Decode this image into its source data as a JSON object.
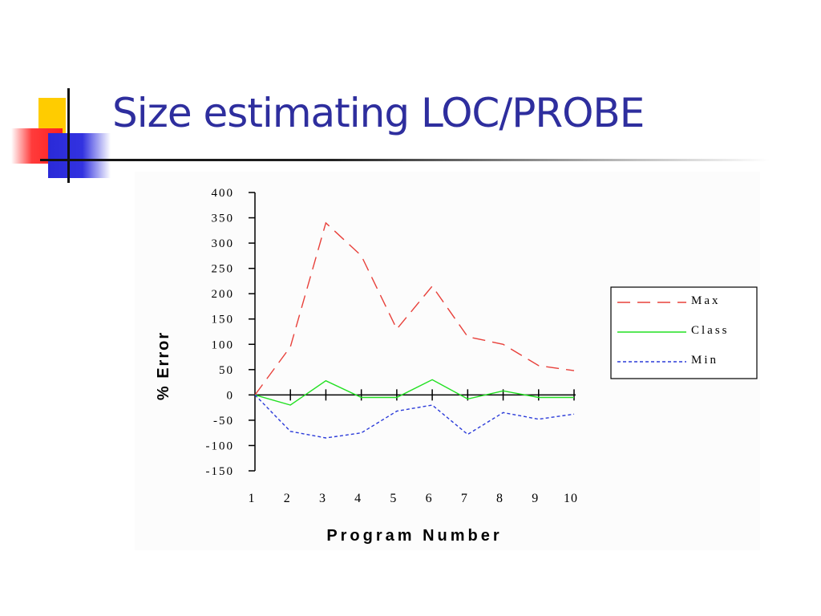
{
  "slide": {
    "title": "Size estimating LOC/PROBE"
  },
  "colors": {
    "title": "#2e2e9e",
    "max": "#e8403a",
    "class": "#22e022",
    "min": "#2b3bd9"
  },
  "chart_data": {
    "type": "line",
    "title": "",
    "xlabel": "Program Number",
    "ylabel": "% Error",
    "x": [
      1,
      2,
      3,
      4,
      5,
      6,
      7,
      8,
      9,
      10
    ],
    "ylim": [
      -150,
      400
    ],
    "yticks": [
      400,
      350,
      300,
      250,
      200,
      150,
      100,
      50,
      0,
      -50,
      -100,
      -150
    ],
    "ytick_labels": [
      "400",
      "350",
      "300",
      "250",
      "200",
      "150",
      "100",
      "50",
      "0",
      "-50",
      "-100",
      "-150"
    ],
    "xtick_labels": [
      "1",
      "2",
      "3",
      "4",
      "5",
      "6",
      "7",
      "8",
      "9",
      "10"
    ],
    "grid": false,
    "legend_position": "right",
    "series": [
      {
        "name": "Max",
        "style": "long-dash",
        "color": "#e8403a",
        "values": [
          0,
          95,
          340,
          275,
          130,
          215,
          115,
          100,
          58,
          48
        ]
      },
      {
        "name": "Class",
        "style": "solid",
        "color": "#22e022",
        "values": [
          0,
          -20,
          28,
          -5,
          -5,
          30,
          -8,
          8,
          -5,
          -5
        ]
      },
      {
        "name": "Min",
        "style": "dotted",
        "color": "#2b3bd9",
        "values": [
          0,
          -72,
          -85,
          -75,
          -32,
          -20,
          -78,
          -35,
          -48,
          -38
        ]
      }
    ]
  }
}
